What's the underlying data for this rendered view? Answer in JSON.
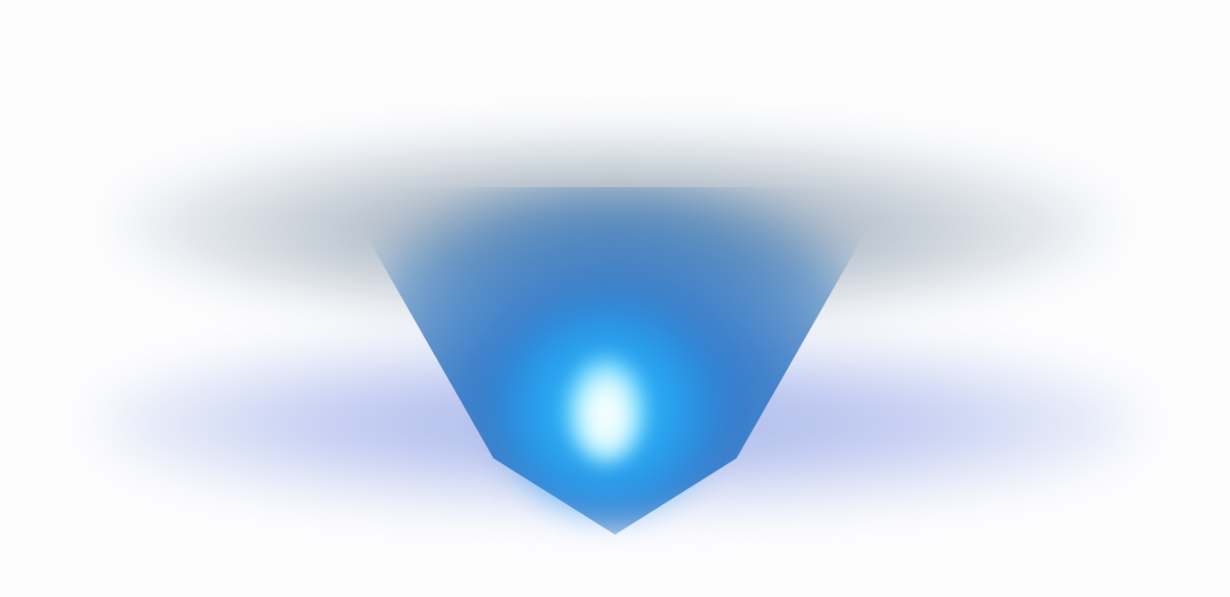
{
  "scene": {
    "description_colors": {
      "background": "#fdfdfe",
      "grey_band": "#8c9cb0",
      "lavender_band": "#a8b6e8",
      "blue_cone": "#2f86d0",
      "cyan_halo": "#3cc8ff",
      "core": "#ffffff"
    }
  }
}
